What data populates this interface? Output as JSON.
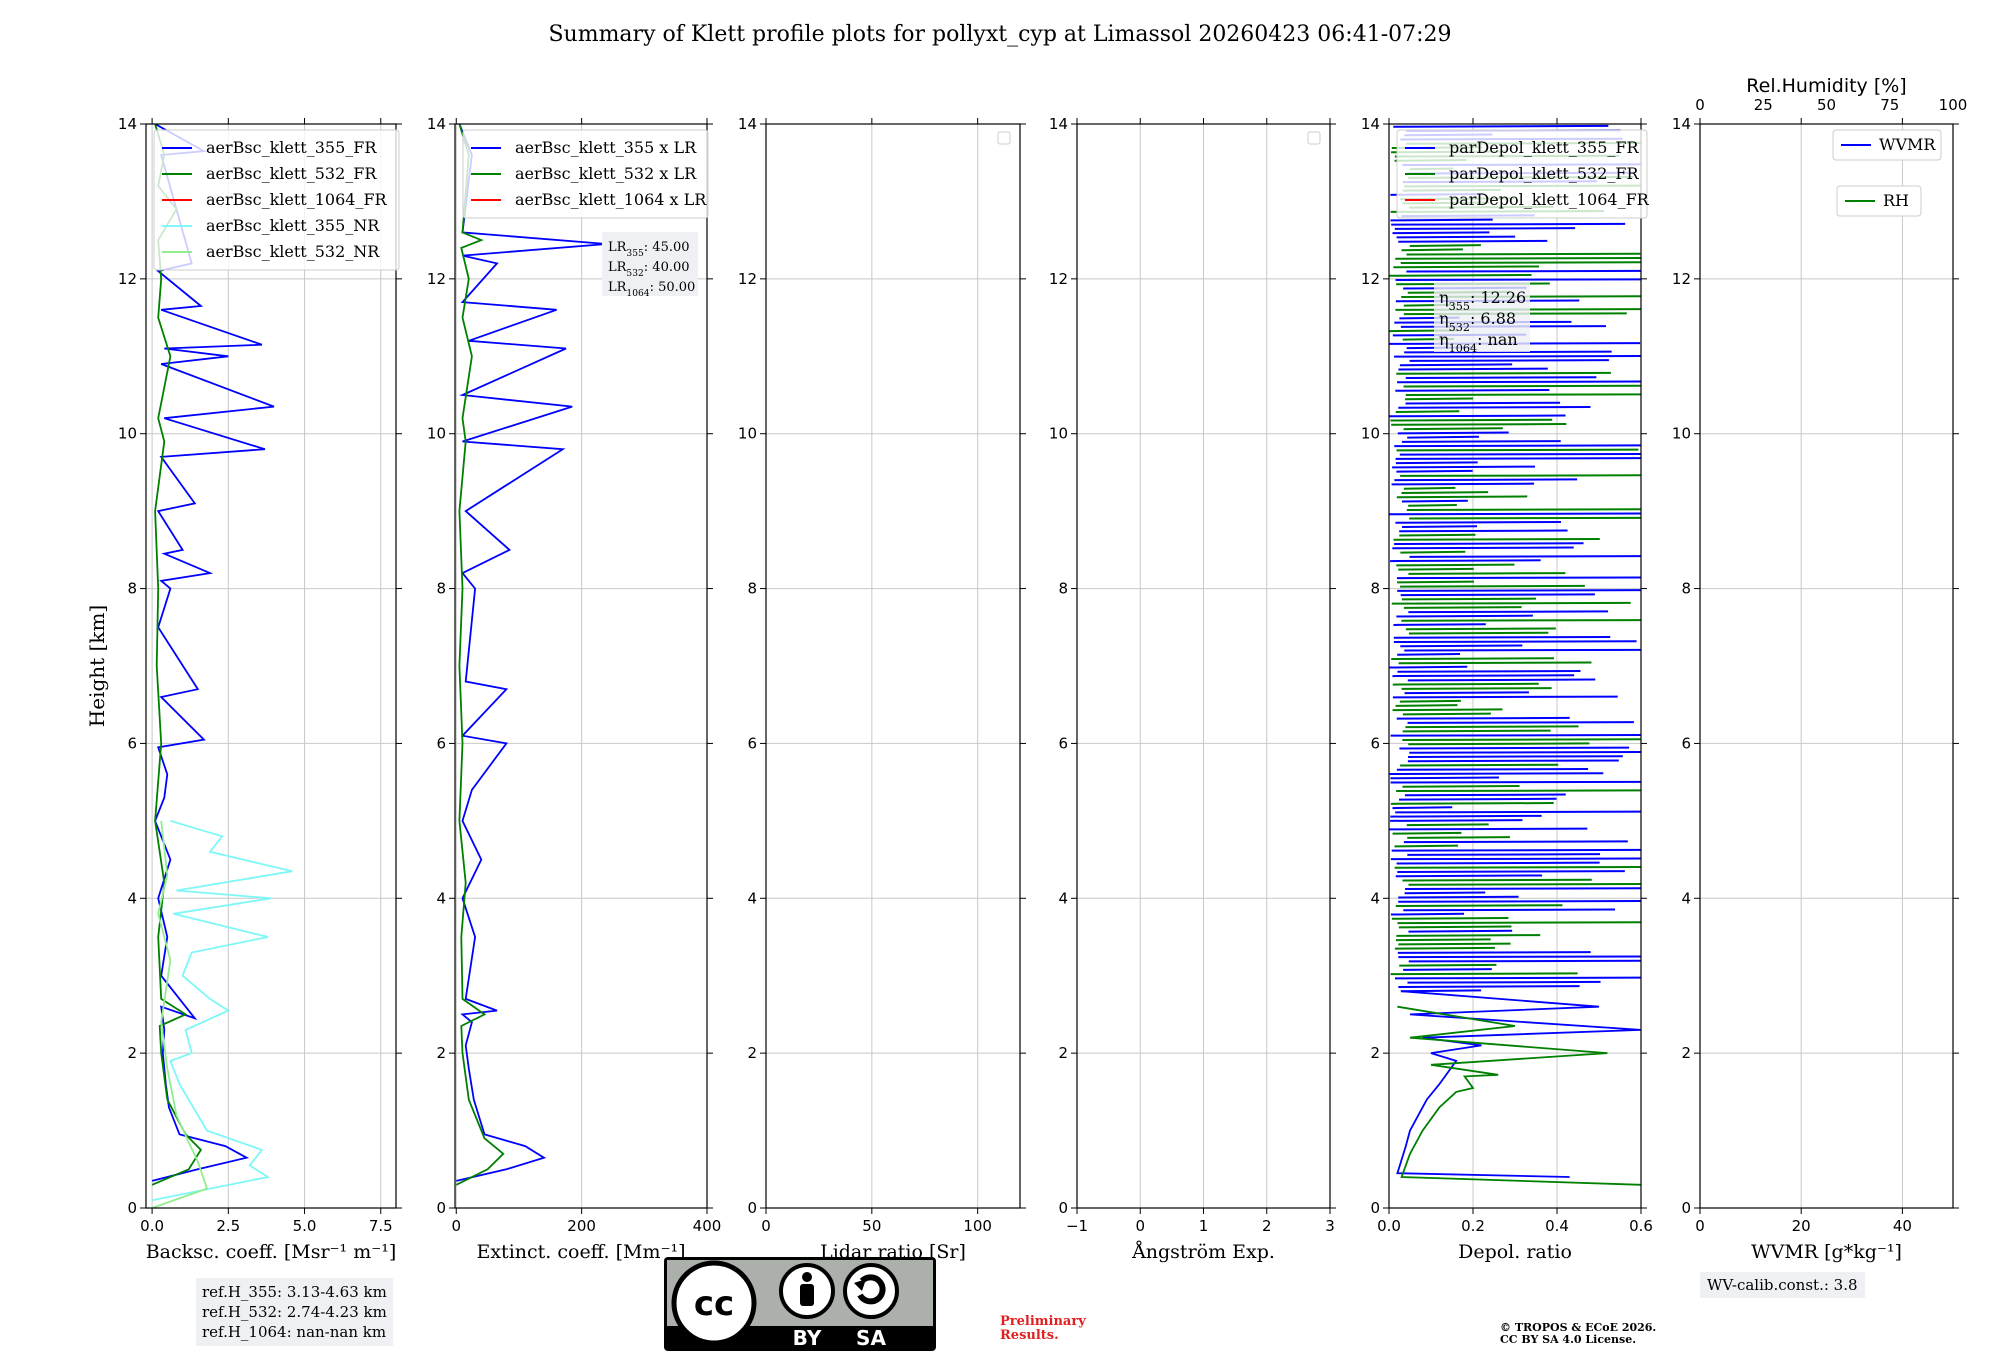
{
  "title": "Summary of Klett profile plots for pollyxt_cyp at Limassol 20260423 06:41-07:29",
  "ylabel": "Height [km]",
  "ref_heights": [
    "ref.H_355: 3.13-4.63 km",
    "ref.H_532: 2.74-4.23 km",
    "ref.H_1064: nan-nan km"
  ],
  "wv_calib": "WV-calib.const.: 3.8",
  "preliminary": [
    "Preliminary",
    "Results."
  ],
  "copyright": [
    "© TROPOS & ECoE 2026.",
    "CC BY SA 4.0 License."
  ],
  "license_badge": {
    "left": "BY",
    "right": "SA",
    "logo": "cc"
  },
  "colors": {
    "b355": "#0000ff",
    "b532": "#008000",
    "b1064": "#ff0000",
    "b355nr": "#7ff7f7",
    "b532nr": "#90ee90"
  },
  "chart_data": [
    {
      "type": "line",
      "panel": "backscatter",
      "xlabel": "Backsc. coeff. [Msr⁻¹ m⁻¹]",
      "xlim": [
        -0.2,
        8
      ],
      "ylim": [
        0,
        14
      ],
      "xticks": [
        0,
        2.5,
        5,
        7.5
      ],
      "xticklabels": [
        "0.0",
        "2.5",
        "5.0",
        "7.5"
      ],
      "legend": [
        "aerBsc_klett_355_FR",
        "aerBsc_klett_532_FR",
        "aerBsc_klett_1064_FR",
        "aerBsc_klett_355_NR",
        "aerBsc_klett_532_NR"
      ],
      "series": [
        {
          "name": "aerBsc_klett_355_FR",
          "color": "#0000ff",
          "x": [
            0,
            1.5,
            3.1,
            2.4,
            0.9,
            0.55,
            0.45,
            0.35,
            0.4,
            0.3,
            1.4,
            0.3,
            0.5,
            0.2,
            0.6,
            0.1,
            0.4,
            0.5,
            0.2,
            1.7,
            0.3,
            1.5,
            0.2,
            0.6,
            0.3,
            1.9,
            0.4,
            1.0,
            0.2,
            1.4,
            0.3,
            3.7,
            0.4,
            4.0,
            0.3,
            2.5,
            0.4,
            3.6,
            0.3,
            1.6,
            0.2,
            1.3,
            0.3,
            1.7,
            0.1
          ],
          "y": [
            0.35,
            0.5,
            0.65,
            0.8,
            0.95,
            1.3,
            1.6,
            2.0,
            2.3,
            2.6,
            2.45,
            3.0,
            3.5,
            4.0,
            4.5,
            5.0,
            5.3,
            5.6,
            5.95,
            6.05,
            6.6,
            6.7,
            7.5,
            8.0,
            8.1,
            8.2,
            8.45,
            8.5,
            9.0,
            9.1,
            9.7,
            9.8,
            10.2,
            10.35,
            10.9,
            11.0,
            11.1,
            11.15,
            11.6,
            11.65,
            12.1,
            12.2,
            13.6,
            13.65,
            14.0
          ]
        },
        {
          "name": "aerBsc_klett_532_FR",
          "color": "#008000",
          "x": [
            0,
            1.2,
            1.6,
            1.1,
            0.5,
            0.3,
            0.25,
            1.1,
            0.3,
            0.2,
            0.4,
            0.1,
            0.3,
            0.15,
            0.2,
            0.1,
            0.4,
            0.2,
            0.6,
            0.2,
            0.3,
            0.2,
            0.8,
            0.2,
            0.4,
            0.1
          ],
          "y": [
            0.3,
            0.5,
            0.75,
            0.95,
            1.4,
            2.0,
            2.35,
            2.5,
            2.7,
            3.5,
            4.2,
            5.0,
            6.0,
            7.0,
            8.0,
            9.0,
            9.9,
            10.2,
            11.0,
            11.5,
            12.0,
            12.5,
            12.9,
            13.2,
            13.6,
            14.0
          ]
        },
        {
          "name": "aerBsc_klett_355_NR",
          "color": "#7ff7f7",
          "x": [
            0,
            3.8,
            3.2,
            3.6,
            1.8,
            0.9,
            0.6,
            1.3,
            1.1,
            2.5,
            1.9,
            1.0,
            1.3,
            3.8,
            0.7,
            3.9,
            0.8,
            4.6,
            1.9,
            2.3,
            0.6
          ],
          "y": [
            0.1,
            0.4,
            0.55,
            0.75,
            1.0,
            1.6,
            1.9,
            2.0,
            2.3,
            2.55,
            2.7,
            3.0,
            3.3,
            3.5,
            3.8,
            4.0,
            4.1,
            4.35,
            4.6,
            4.8,
            5.0
          ]
        },
        {
          "name": "aerBsc_klett_532_NR",
          "color": "#90ee90",
          "x": [
            0,
            1.8,
            1.5,
            1.2,
            0.8,
            0.5,
            0.3,
            0.6,
            0.2,
            0.5,
            0.3
          ],
          "y": [
            0.0,
            0.25,
            0.6,
            0.85,
            1.2,
            1.8,
            2.4,
            3.2,
            3.8,
            4.3,
            5.0
          ]
        }
      ]
    },
    {
      "type": "line",
      "panel": "extinction",
      "xlabel": "Extinct. coeff. [Mm⁻¹]",
      "xlim": [
        -2,
        400
      ],
      "ylim": [
        0,
        14
      ],
      "xticks": [
        0,
        200,
        400
      ],
      "xticklabels": [
        "0",
        "200",
        "400"
      ],
      "legend": [
        "aerBsc_klett_355 x LR",
        "aerBsc_klett_532 x LR",
        "aerBsc_klett_1064 x LR"
      ],
      "lr_box": {
        "lines": [
          "LR",
          "LR",
          "LR"
        ],
        "subs": [
          "355",
          "532",
          "1064"
        ],
        "values": [
          ": 45.00",
          ": 40.00",
          ": 50.00"
        ]
      },
      "series": [
        {
          "name": "aerBsc_klett_355 x LR",
          "color": "#0000ff",
          "x": [
            0,
            80,
            140,
            110,
            45,
            28,
            20,
            15,
            25,
            10,
            65,
            15,
            30,
            10,
            40,
            10,
            25,
            80,
            10,
            80,
            15,
            30,
            10,
            85,
            15,
            170,
            10,
            185,
            10,
            175,
            20,
            160,
            10,
            65,
            10,
            240,
            10,
            25,
            5
          ],
          "y": [
            0.35,
            0.5,
            0.65,
            0.8,
            0.95,
            1.4,
            1.8,
            2.1,
            2.4,
            2.5,
            2.55,
            2.7,
            3.5,
            4.0,
            4.5,
            5.0,
            5.4,
            6.0,
            6.1,
            6.7,
            6.8,
            8.0,
            8.2,
            8.5,
            9.0,
            9.8,
            9.9,
            10.35,
            10.5,
            11.1,
            11.2,
            11.6,
            11.7,
            12.2,
            12.3,
            12.45,
            12.6,
            13.6,
            14.0
          ]
        },
        {
          "name": "aerBsc_klett_532 x LR",
          "color": "#008000",
          "x": [
            0,
            50,
            75,
            45,
            20,
            10,
            8,
            45,
            10,
            8,
            15,
            5,
            10,
            5,
            10,
            5,
            15,
            10,
            25,
            10,
            20,
            8,
            40,
            10,
            20,
            5
          ],
          "y": [
            0.3,
            0.5,
            0.7,
            0.9,
            1.4,
            2.0,
            2.35,
            2.5,
            2.7,
            3.5,
            4.2,
            5.0,
            6.0,
            7.0,
            8.0,
            9.0,
            9.9,
            10.2,
            11.0,
            11.5,
            12.0,
            12.4,
            12.5,
            12.6,
            13.6,
            14.0
          ]
        }
      ]
    },
    {
      "type": "line",
      "panel": "lidar_ratio",
      "xlabel": "Lidar ratio [Sr]",
      "xlim": [
        0,
        120
      ],
      "ylim": [
        0,
        14
      ],
      "xticks": [
        0,
        50,
        100
      ],
      "xticklabels": [
        "0",
        "50",
        "100"
      ],
      "series": []
    },
    {
      "type": "line",
      "panel": "angstrom",
      "xlabel": "Ångström Exp.",
      "xlim": [
        -1,
        3
      ],
      "ylim": [
        0,
        14
      ],
      "xticks": [
        -1,
        0,
        1,
        2,
        3
      ],
      "xticklabels": [
        "−1",
        "0",
        "1",
        "2",
        "3"
      ],
      "series": []
    },
    {
      "type": "line",
      "panel": "depol",
      "xlabel": "Depol. ratio",
      "xlim": [
        0,
        0.6
      ],
      "ylim": [
        0,
        14
      ],
      "xticks": [
        0,
        0.2,
        0.4,
        0.6
      ],
      "xticklabels": [
        "0.0",
        "0.2",
        "0.4",
        "0.6"
      ],
      "legend": [
        "parDepol_klett_355_FR",
        "parDepol_klett_532_FR",
        "parDepol_klett_1064_FR"
      ],
      "eta_box": {
        "symbol": "η",
        "subs": [
          "355",
          "532",
          "1064"
        ],
        "values": [
          ": 12.26",
          ": 6.88",
          ": nan"
        ]
      },
      "series": [
        {
          "name": "parDepol_klett_355_FR",
          "color": "#0000ff",
          "x": [
            0.43,
            0.02,
            0.04,
            0.05,
            0.07,
            0.09,
            0.12,
            0.14,
            0.16,
            0.1,
            0.22,
            0.08,
            0.6,
            0.05,
            0.5,
            0.03
          ],
          "y": [
            0.4,
            0.45,
            0.8,
            1.0,
            1.2,
            1.4,
            1.6,
            1.75,
            1.9,
            2.0,
            2.1,
            2.2,
            2.3,
            2.5,
            2.6,
            2.8
          ]
        },
        {
          "name": "parDepol_klett_532_FR",
          "color": "#008000",
          "x": [
            0.6,
            0.03,
            0.05,
            0.08,
            0.12,
            0.16,
            0.2,
            0.18,
            0.26,
            0.1,
            0.52,
            0.05,
            0.3,
            0.02
          ],
          "y": [
            0.3,
            0.4,
            0.7,
            1.0,
            1.3,
            1.5,
            1.55,
            1.7,
            1.72,
            1.85,
            2.0,
            2.2,
            2.35,
            2.6
          ]
        }
      ],
      "noise_region_km": [
        2.8,
        14
      ]
    },
    {
      "type": "line",
      "panel": "wvmr",
      "xlabel": "WVMR [g*kg⁻¹]",
      "xlim": [
        0,
        50
      ],
      "ylim": [
        0,
        14
      ],
      "xticks": [
        0,
        20,
        40
      ],
      "xticklabels": [
        "0",
        "20",
        "40"
      ],
      "top_label": "Rel.Humidity [%]",
      "top_xticks": [
        0,
        25,
        50,
        75,
        100
      ],
      "top_xticklabels": [
        "0",
        "25",
        "50",
        "75",
        "100"
      ],
      "legend": [
        "WVMR",
        "RH"
      ],
      "series": []
    }
  ]
}
